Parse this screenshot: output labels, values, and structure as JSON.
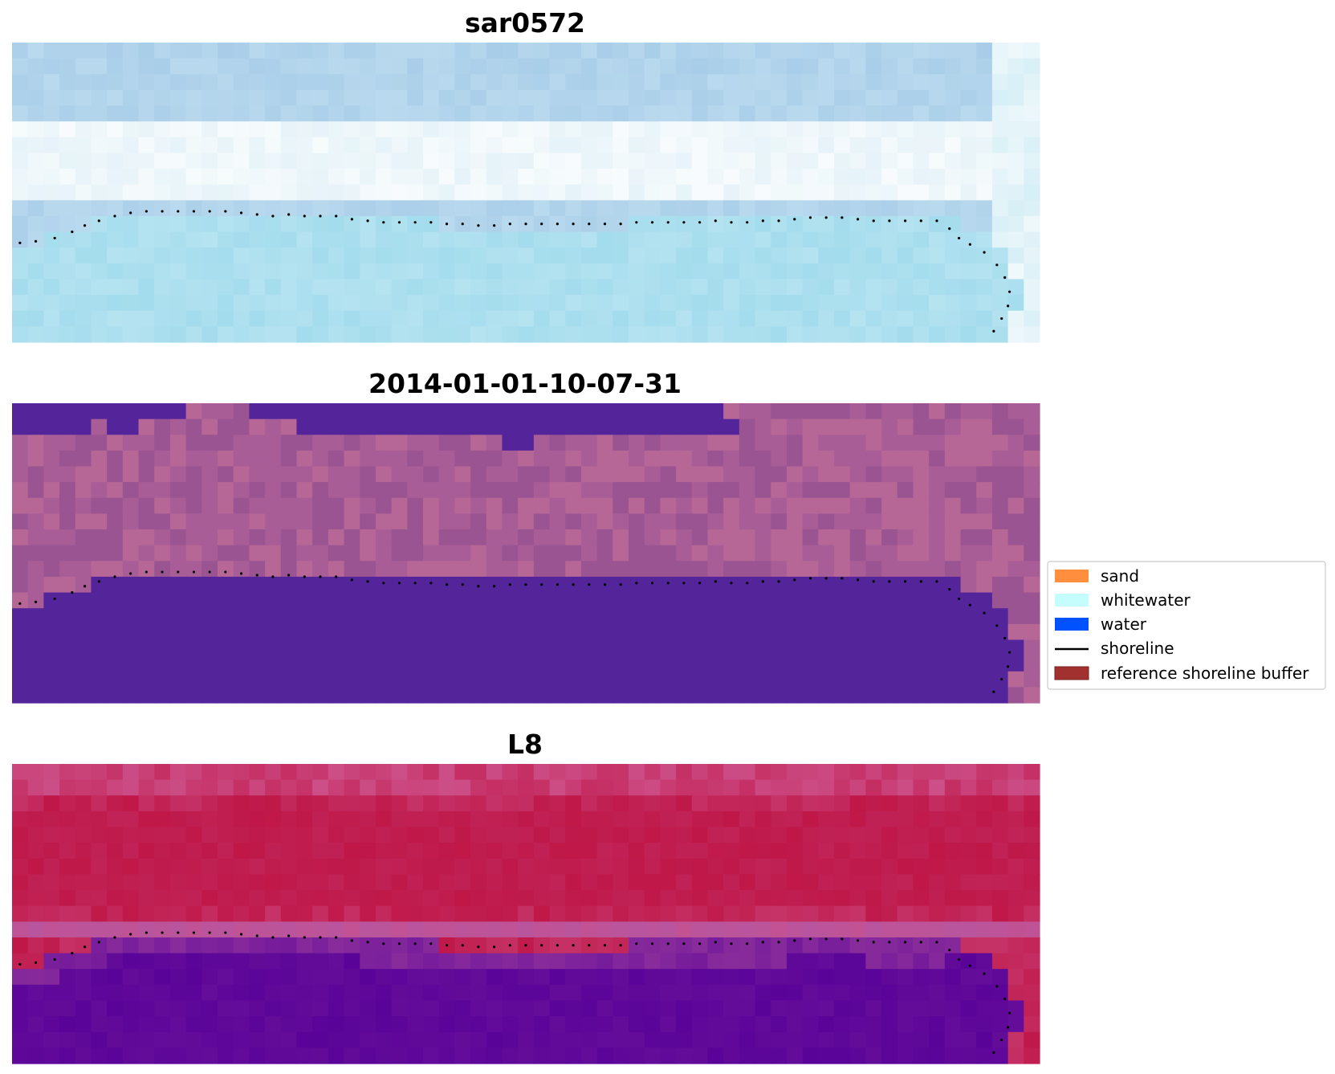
{
  "chart_data": {
    "type": "heatmap",
    "panels": [
      {
        "id": "sar",
        "title": "sar0572",
        "colormap": "sar-blue",
        "colors": {
          "water": "#a3dced",
          "land_a": "#a8cde8",
          "land_b": "#b9d9ee",
          "wash": "#e6f3f8",
          "bright": "#ffffff",
          "edge": "#d7eff6"
        }
      },
      {
        "id": "classified",
        "title": "2014-01-01-10-07-31",
        "colormap": "classification",
        "colors": {
          "water_class": "#54249a",
          "land": "#a95d97",
          "land_alt": "#b66796",
          "land_dark": "#9a5492"
        }
      },
      {
        "id": "l8",
        "title": "L8",
        "colormap": "index-pink-purple",
        "colors": {
          "water": "#590399",
          "transition": "#b8559e",
          "land": "#bf1748",
          "land_light": "#cc4f87",
          "edge": "#c43a72"
        }
      }
    ],
    "grid": {
      "rows": 19,
      "cols": 65,
      "grid_on": false
    },
    "shoreline": {
      "style": "dotted",
      "color": "#000000",
      "x": [
        0.5,
        1.5,
        2.7,
        3.8,
        4.6,
        5.5,
        6.5,
        7.5,
        8.5,
        9.5,
        10.5,
        11.5,
        12.5,
        13.5,
        14.5,
        15.5,
        16.5,
        17.5,
        18.5,
        19.5,
        20.5,
        21.5,
        22.5,
        23.5,
        24.5,
        25.5,
        26.5,
        27.5,
        28.5,
        29.5,
        30.5,
        31.5,
        32.5,
        33.5,
        34.5,
        35.5,
        36.5,
        37.5,
        38.5,
        39.5,
        40.5,
        41.5,
        42.5,
        43.5,
        44.5,
        45.5,
        46.5,
        47.5,
        48.5,
        49.5,
        50.5,
        51.5,
        52.5,
        53.5,
        54.5,
        55.5,
        56.5,
        57.5,
        58.5,
        59.3,
        59.9,
        60.6,
        61.5,
        62.3,
        62.8,
        63.1,
        63.0,
        62.6,
        62.1
      ],
      "y": [
        12.7,
        12.6,
        12.4,
        12.0,
        11.6,
        11.3,
        11.0,
        10.8,
        10.7,
        10.7,
        10.7,
        10.7,
        10.7,
        10.7,
        10.8,
        10.9,
        11.0,
        10.9,
        11.0,
        11.0,
        11.0,
        11.2,
        11.3,
        11.4,
        11.4,
        11.4,
        11.4,
        11.5,
        11.5,
        11.6,
        11.6,
        11.5,
        11.5,
        11.5,
        11.5,
        11.5,
        11.5,
        11.5,
        11.5,
        11.4,
        11.4,
        11.4,
        11.4,
        11.4,
        11.3,
        11.4,
        11.4,
        11.3,
        11.3,
        11.2,
        11.1,
        11.1,
        11.1,
        11.2,
        11.3,
        11.3,
        11.3,
        11.3,
        11.3,
        11.8,
        12.4,
        12.8,
        13.3,
        14.1,
        14.9,
        15.8,
        16.7,
        17.5,
        18.3
      ]
    },
    "legend": {
      "placement": "center-right",
      "entries": [
        {
          "label": "sand",
          "kind": "patch",
          "color": "#ff8f3f"
        },
        {
          "label": "whitewater",
          "kind": "patch",
          "color": "#c5fdfd"
        },
        {
          "label": "water",
          "kind": "patch",
          "color": "#0052fe"
        },
        {
          "label": "shoreline",
          "kind": "line",
          "color": "#000000"
        },
        {
          "label": "reference shoreline buffer",
          "kind": "patch",
          "color": "#a0312e"
        }
      ]
    }
  }
}
